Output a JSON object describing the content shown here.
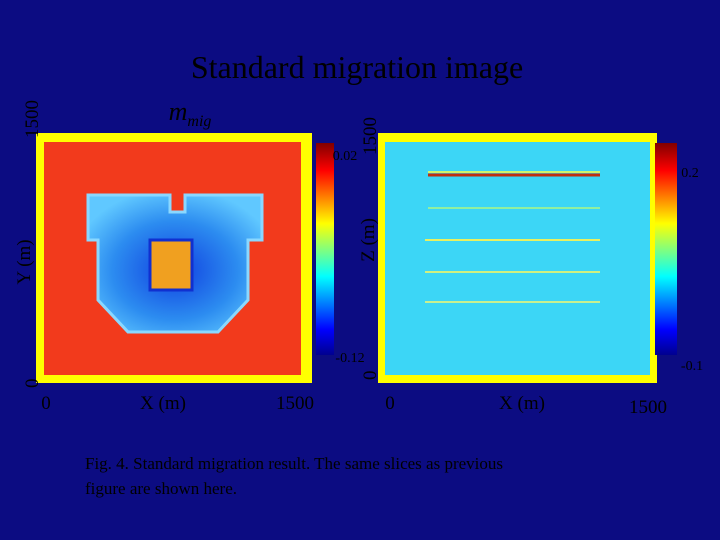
{
  "title": "Standard migration image",
  "panels": [
    {
      "label": {
        "base": "m",
        "subscript": "mig"
      },
      "x_axis": {
        "label": "X (m)",
        "start": "0",
        "end": "1500"
      },
      "y_axis": {
        "label": "Y (m)",
        "start": "0",
        "end": "1500"
      },
      "colorbar": {
        "max": "0.02",
        "min": "-0.12"
      }
    },
    {
      "x_axis": {
        "label": "X (m)",
        "start": "0",
        "end": "1500"
      },
      "y_axis": {
        "label": "Z (m)",
        "start": "0",
        "end": "1500"
      },
      "colorbar": {
        "max": "0.2",
        "min": "-0.1"
      }
    }
  ],
  "caption": {
    "line1": "Fig. 4. Standard migration result. The same slices as previous",
    "line2": "figure are shown here."
  }
}
